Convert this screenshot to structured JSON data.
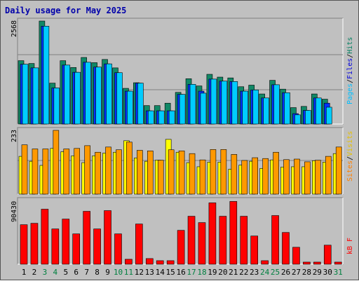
{
  "page": {
    "title": "Daily usage for May 2025"
  },
  "legend": {
    "top": [
      {
        "label": "Pages",
        "color": "#00bfff"
      },
      {
        "label": "Files",
        "color": "#0000dd"
      },
      {
        "label": "Hits",
        "color": "#007f5f"
      }
    ],
    "middle": [
      {
        "label": "Sites",
        "color": "#ff8000"
      },
      {
        "label": "Visits",
        "color": "#e5c000"
      }
    ],
    "bottom": [
      {
        "label": "kB F",
        "color": "#ff0000"
      }
    ],
    "separator": "/"
  },
  "colors": {
    "hits": "#118866",
    "files": "#0033ff",
    "pages": "#00ccff",
    "visits": "#ffff00",
    "sites": "#ff9900",
    "kb": "#ff0000",
    "weekend_day": "#008040",
    "weekday_day": "#000000"
  },
  "chart_data": [
    {
      "type": "bar",
      "title": "Daily usage for May 2025",
      "ylabel": "Pages / Files / Hits",
      "ytick": "2568",
      "ylim": [
        0,
        2568
      ],
      "categories": [
        "1",
        "2",
        "3",
        "4",
        "5",
        "6",
        "7",
        "8",
        "9",
        "10",
        "11",
        "12",
        "13",
        "14",
        "15",
        "16",
        "17",
        "18",
        "19",
        "20",
        "21",
        "22",
        "23",
        "24",
        "25",
        "26",
        "27",
        "28",
        "29",
        "30",
        "31"
      ],
      "series": [
        {
          "name": "Hits",
          "values": [
            1580,
            1510,
            2568,
            1020,
            1580,
            1410,
            1660,
            1530,
            1610,
            1400,
            890,
            1030,
            460,
            460,
            520,
            790,
            1130,
            950,
            1240,
            1170,
            1150,
            930,
            970,
            750,
            1090,
            870,
            410,
            440,
            750,
            620,
            0
          ]
        },
        {
          "name": "Files",
          "values": [
            1490,
            1400,
            2440,
            900,
            1470,
            1290,
            1540,
            1420,
            1500,
            1280,
            820,
            1020,
            330,
            330,
            330,
            740,
            990,
            820,
            1120,
            1070,
            1060,
            820,
            850,
            650,
            980,
            780,
            260,
            340,
            650,
            520,
            0
          ]
        },
        {
          "name": "Pages",
          "values": [
            1490,
            1400,
            2440,
            900,
            1470,
            1290,
            1540,
            1420,
            1500,
            1280,
            820,
            1020,
            330,
            330,
            330,
            740,
            990,
            770,
            1120,
            1070,
            1060,
            820,
            850,
            650,
            980,
            780,
            230,
            340,
            650,
            420,
            0
          ]
        }
      ]
    },
    {
      "type": "bar",
      "ylabel": "Sites / Visits",
      "ytick": "233",
      "ylim": [
        0,
        233
      ],
      "categories": [
        "1",
        "2",
        "3",
        "4",
        "5",
        "6",
        "7",
        "8",
        "9",
        "10",
        "11",
        "12",
        "13",
        "14",
        "15",
        "16",
        "17",
        "18",
        "19",
        "20",
        "21",
        "22",
        "23",
        "24",
        "25",
        "26",
        "27",
        "28",
        "29",
        "30",
        "31"
      ],
      "series": [
        {
          "name": "Visits",
          "values": [
            138,
            120,
            105,
            167,
            155,
            140,
            115,
            140,
            150,
            153,
            195,
            132,
            120,
            124,
            200,
            153,
            115,
            100,
            117,
            117,
            91,
            106,
            120,
            94,
            125,
            99,
            100,
            100,
            122,
            117,
            148
          ]
        },
        {
          "name": "Sites",
          "values": [
            180,
            165,
            165,
            233,
            165,
            167,
            177,
            153,
            172,
            162,
            190,
            160,
            158,
            124,
            162,
            158,
            148,
            125,
            163,
            163,
            145,
            123,
            133,
            130,
            153,
            126,
            128,
            118,
            124,
            138,
            172
          ]
        }
      ]
    },
    {
      "type": "bar",
      "ylabel": "kB F",
      "ytick": "90430",
      "ylim": [
        0,
        90430
      ],
      "categories": [
        "1",
        "2",
        "3",
        "4",
        "5",
        "6",
        "7",
        "8",
        "9",
        "10",
        "11",
        "12",
        "13",
        "14",
        "15",
        "16",
        "17",
        "18",
        "19",
        "20",
        "21",
        "22",
        "23",
        "24",
        "25",
        "26",
        "27",
        "28",
        "29",
        "30",
        "31"
      ],
      "series": [
        {
          "name": "kB F",
          "values": [
            56000,
            58000,
            78000,
            50000,
            64000,
            43000,
            75000,
            50000,
            76000,
            43000,
            7000,
            57000,
            8000,
            5000,
            5000,
            48000,
            68000,
            59000,
            87000,
            68000,
            89000,
            68000,
            40000,
            5000,
            69000,
            45000,
            24000,
            3000,
            3000,
            27000,
            3000
          ]
        }
      ]
    }
  ]
}
